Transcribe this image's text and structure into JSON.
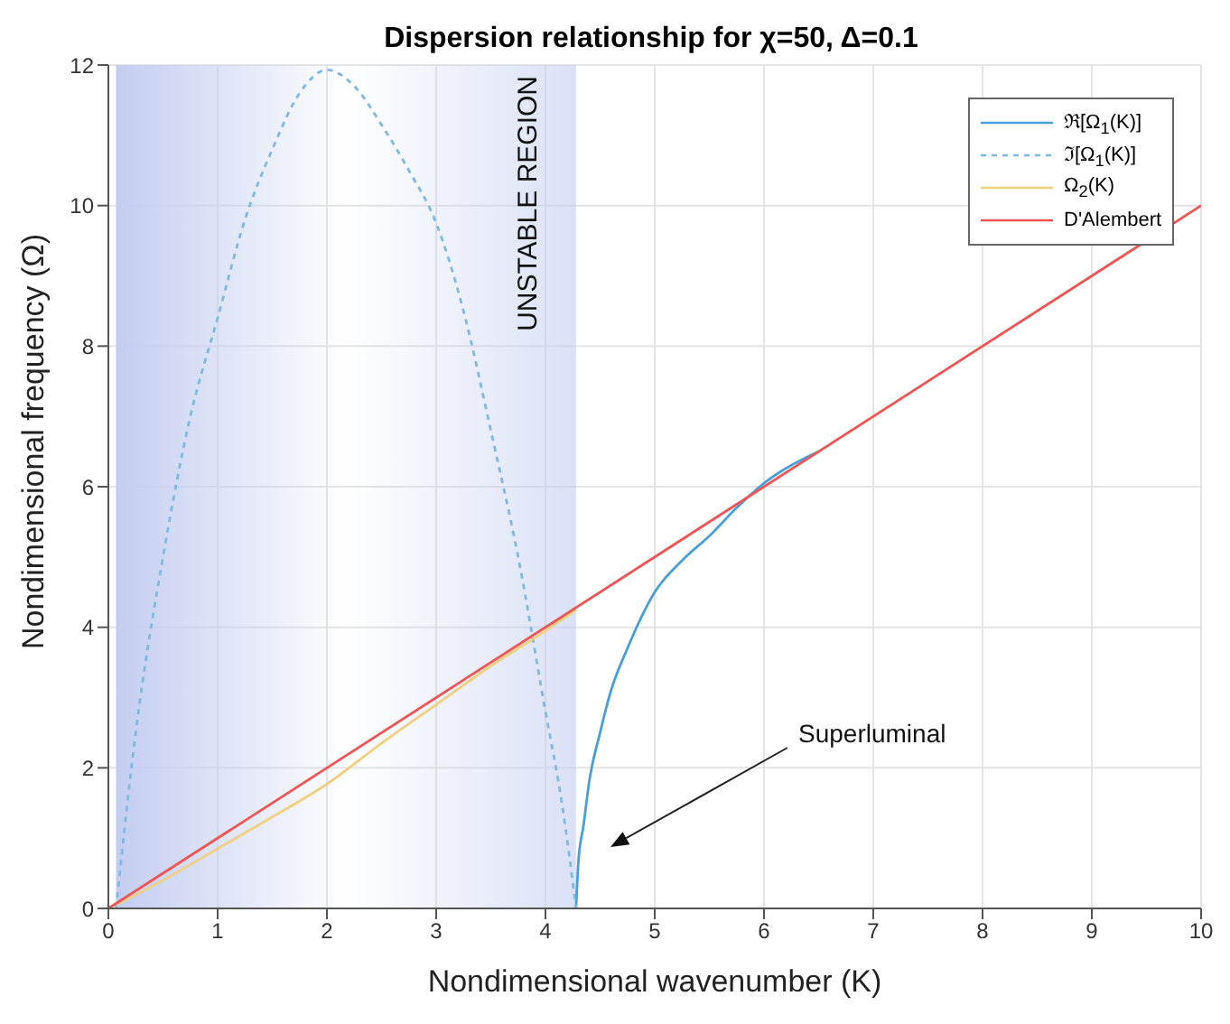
{
  "chart_data": {
    "type": "line",
    "title": "Dispersion relationship for χ=50, Δ=0.1",
    "xlabel": "Nondimensional wavenumber (K)",
    "ylabel": "Nondimensional frequency (Ω)",
    "xlim": [
      0,
      10
    ],
    "ylim": [
      0,
      12
    ],
    "xticks": [
      0,
      1,
      2,
      3,
      4,
      5,
      6,
      7,
      8,
      9,
      10
    ],
    "yticks": [
      0,
      2,
      4,
      6,
      8,
      10,
      12
    ],
    "grid": true,
    "legend": "top right",
    "marker": "none",
    "series": [
      {
        "name": "ℜ[Ω$_{1}$(K)]",
        "color": "#4a9fd8",
        "line_style": "solid",
        "x": [
          4.28,
          4.3,
          4.35,
          4.4,
          4.5,
          4.6,
          4.75,
          5,
          5.25,
          5.5,
          5.75,
          6,
          6.5
        ],
        "values": [
          0,
          0.64,
          1.2,
          1.8,
          2.5,
          3.1,
          3.7,
          4.5,
          4.95,
          5.3,
          5.7,
          6.05,
          6.5
        ]
      },
      {
        "name": "ℑ[Ω$_{1}$(K)]",
        "color": "#7fb8e0",
        "line_style": "dashed",
        "x": [
          0.07,
          0.25,
          0.5,
          0.75,
          1,
          1.25,
          1.5,
          1.75,
          2,
          2.25,
          2.5,
          2.75,
          3,
          3.25,
          3.5,
          3.75,
          4,
          4.15,
          4.28
        ],
        "values": [
          0,
          2.5,
          5,
          7,
          8.4,
          9.8,
          10.8,
          11.6,
          11.93,
          11.7,
          11.15,
          10.5,
          9.75,
          8.5,
          6.8,
          5,
          2.8,
          1.5,
          0
        ]
      },
      {
        "name": "Ω$_{2}$(K)",
        "color": "#efcf80",
        "line_style": "solid",
        "x": [
          0.07,
          0.5,
          1,
          1.5,
          2,
          2.5,
          3,
          3.5,
          4,
          4.28
        ],
        "values": [
          0.05,
          0.4,
          0.85,
          1.3,
          1.77,
          2.35,
          2.9,
          3.45,
          3.95,
          4.25
        ]
      },
      {
        "name": "D'Alembert",
        "color": "#f05555",
        "line_style": "solid",
        "x": [
          0,
          10
        ],
        "values": [
          0,
          10
        ]
      }
    ],
    "bands": [
      {
        "axis": "x",
        "from": 0.07,
        "to": 4.28,
        "label": "UNSTABLE REGION",
        "color": "#c3cdf0"
      }
    ],
    "annotations": [
      "Superluminal"
    ]
  }
}
